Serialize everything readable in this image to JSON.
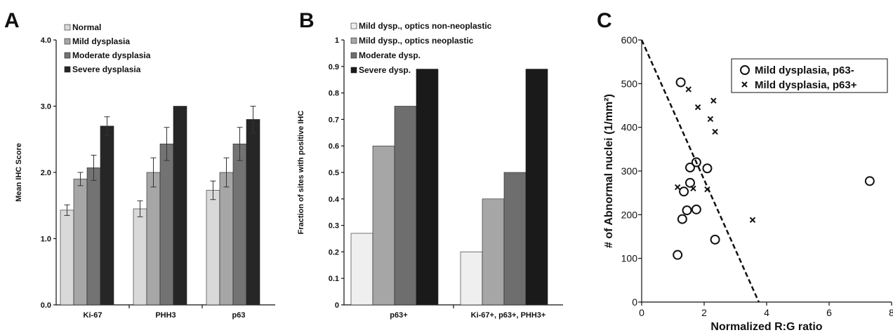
{
  "chart_data": [
    {
      "panel": "A",
      "type": "bar",
      "ylabel": "Mean IHC Score",
      "xlabel": "",
      "ylim": [
        0,
        4
      ],
      "yticks": [
        "0.0",
        "1.0",
        "2.0",
        "3.0",
        "4.0"
      ],
      "categories": [
        "Ki-67",
        "PHH3",
        "p63"
      ],
      "legend_position": "top-left",
      "series": [
        {
          "name": "Normal",
          "color": "#d9d9d9",
          "values": [
            1.43,
            1.45,
            1.73
          ],
          "errors": [
            0.08,
            0.12,
            0.14
          ]
        },
        {
          "name": "Mild dysplasia",
          "color": "#a6a6a6",
          "values": [
            1.9,
            2.0,
            2.0
          ],
          "errors": [
            0.1,
            0.22,
            0.22
          ]
        },
        {
          "name": "Moderate dysplasia",
          "color": "#737373",
          "values": [
            2.07,
            2.43,
            2.43
          ],
          "errors": [
            0.19,
            0.25,
            0.25
          ]
        },
        {
          "name": "Severe dysplasia",
          "color": "#262626",
          "values": [
            2.7,
            3.0,
            2.8
          ],
          "errors": [
            0.14,
            0.0,
            0.2
          ]
        }
      ]
    },
    {
      "panel": "B",
      "type": "bar",
      "ylabel": "Fraction of sites with positive IHC",
      "xlabel": "",
      "ylim": [
        0,
        1
      ],
      "yticks": [
        "0",
        "0.1",
        "0.2",
        "0.3",
        "0.4",
        "0.5",
        "0.6",
        "0.7",
        "0.8",
        "0.9",
        "1"
      ],
      "categories": [
        "p63+",
        "Ki-67+, p63+, PHH3+"
      ],
      "legend_position": "top-left",
      "series": [
        {
          "name": "Mild dysp., optics non-neoplastic",
          "color": "#efefef",
          "values": [
            0.27,
            0.2
          ]
        },
        {
          "name": "Mild dysp., optics neoplastic",
          "color": "#a6a6a6",
          "values": [
            0.6,
            0.4
          ]
        },
        {
          "name": "Moderate dysp.",
          "color": "#6e6e6e",
          "values": [
            0.75,
            0.5
          ]
        },
        {
          "name": "Severe dysp.",
          "color": "#1a1a1a",
          "values": [
            0.89,
            0.89
          ]
        }
      ]
    },
    {
      "panel": "C",
      "type": "scatter",
      "xlabel": "Normalized R:G ratio",
      "ylabel": "# of Abnormal nuclei (1/mm²)",
      "xlim": [
        0,
        8
      ],
      "ylim": [
        0,
        600
      ],
      "xticks": [
        "0",
        "2",
        "4",
        "6",
        "8"
      ],
      "yticks": [
        "0",
        "100",
        "200",
        "300",
        "400",
        "500",
        "600"
      ],
      "legend_position": "top-right",
      "series": [
        {
          "name": "Mild dysplasia, p63-",
          "marker": "circle",
          "points": [
            [
              1.25,
              503
            ],
            [
              1.55,
              308
            ],
            [
              1.75,
              320
            ],
            [
              2.1,
              306
            ],
            [
              1.55,
              273
            ],
            [
              1.35,
              253
            ],
            [
              1.45,
              210
            ],
            [
              1.75,
              212
            ],
            [
              1.3,
              190
            ],
            [
              1.15,
              108
            ],
            [
              2.35,
              143
            ],
            [
              7.3,
              277
            ]
          ]
        },
        {
          "name": "Mild dysplasia, p63+",
          "marker": "cross",
          "points": [
            [
              1.5,
              487
            ],
            [
              1.8,
              446
            ],
            [
              2.3,
              461
            ],
            [
              2.2,
              419
            ],
            [
              2.35,
              390
            ],
            [
              1.15,
              263
            ],
            [
              1.65,
              260
            ],
            [
              2.1,
              258
            ],
            [
              3.55,
              188
            ]
          ]
        }
      ],
      "trendline": {
        "from": [
          0,
          600
        ],
        "to": [
          3.75,
          0
        ],
        "style": "dashed"
      }
    }
  ]
}
